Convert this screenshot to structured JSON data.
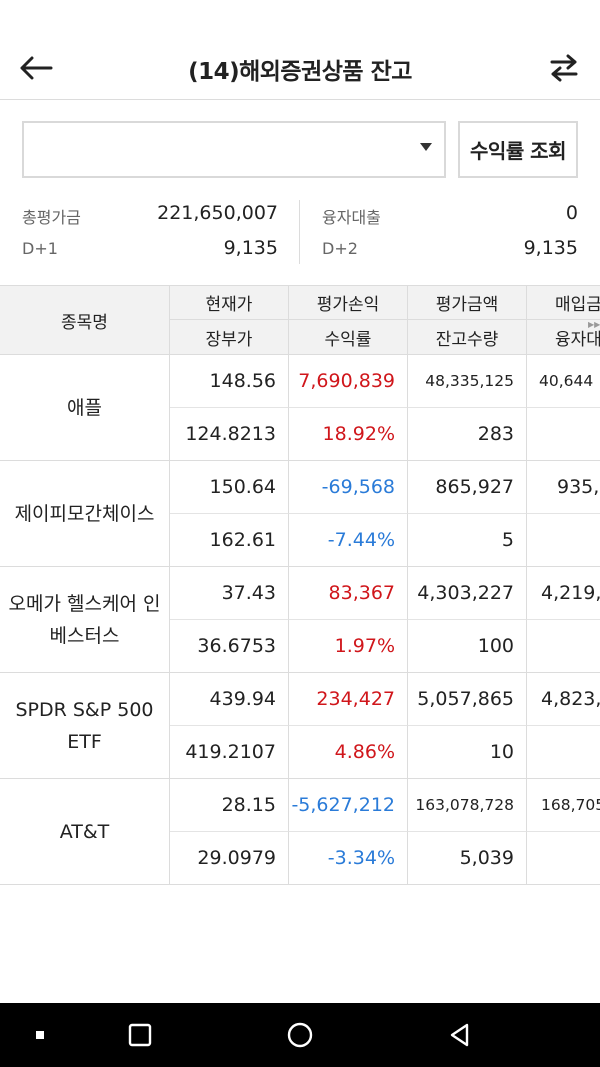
{
  "header": {
    "title": "(14)해외증권상품 잔고",
    "back_icon": "arrow-left-icon",
    "swap_icon": "swap-arrows-icon"
  },
  "filter": {
    "account_value": "",
    "query_label": "수익률 조회"
  },
  "summary": {
    "total_label": "총평가금",
    "total_value": "221,650,007",
    "loan_label": "융자대출",
    "loan_value": "0",
    "d1_label": "D+1",
    "d1_value": "9,135",
    "d2_label": "D+2",
    "d2_value": "9,135"
  },
  "table": {
    "headers": {
      "name": "종목명",
      "price": "현재가",
      "book_price": "장부가",
      "pnl": "평가손익",
      "return": "수익률",
      "eval": "평가금액",
      "qty": "잔고수량",
      "buy": "매입금",
      "margin": "융자대"
    },
    "rows": [
      {
        "name": "애플",
        "price": "148.56",
        "pnl": "7,690,839",
        "eval": "48,335,125",
        "buy": "40,644",
        "book": "124.8213",
        "ret": "18.92%",
        "qty": "283",
        "margin": ""
      },
      {
        "name": "제이피모간체이스",
        "price": "150.64",
        "pnl": "-69,568",
        "eval": "865,927",
        "buy": "935,",
        "book": "162.61",
        "ret": "-7.44%",
        "qty": "5",
        "margin": ""
      },
      {
        "name": "오메가 헬스케어 인베스터스",
        "price": "37.43",
        "pnl": "83,367",
        "eval": "4,303,227",
        "buy": "4,219,",
        "book": "36.6753",
        "ret": "1.97%",
        "qty": "100",
        "margin": ""
      },
      {
        "name": "SPDR S&P 500 ETF",
        "price": "439.94",
        "pnl": "234,427",
        "eval": "5,057,865",
        "buy": "4,823,",
        "book": "419.2107",
        "ret": "4.86%",
        "qty": "10",
        "margin": ""
      },
      {
        "name": "AT&T",
        "price": "28.15",
        "pnl": "-5,627,212",
        "eval": "163,078,728",
        "buy": "168,705",
        "book": "29.0979",
        "ret": "-3.34%",
        "qty": "5,039",
        "margin": ""
      }
    ]
  },
  "colors": {
    "profit": "#d0161b",
    "loss": "#2a7bd8",
    "header_bg": "#f2f2f2"
  },
  "navbar": {
    "recent_icon": "recent-apps-icon",
    "home_icon": "home-icon",
    "back_icon": "nav-back-icon",
    "menu_icon": "menu-dot-icon"
  }
}
